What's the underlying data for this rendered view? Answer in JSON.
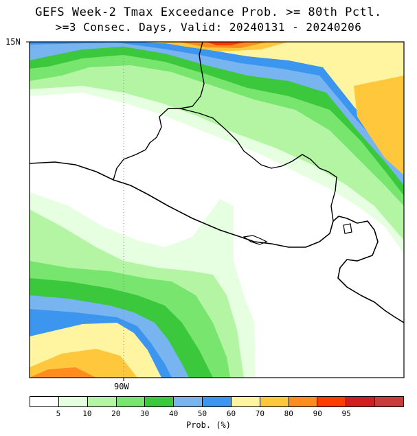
{
  "title_line1": "GEFS Week-2 Tmax Exceedance Prob. >= 80th Pctl.",
  "title_line2": ">=3 Consec. Days, Valid: 20240131 - 20240206",
  "lat_label": "15N",
  "lon_label": "90W",
  "legend": {
    "colors": [
      "#ffffff",
      "#e6ffe0",
      "#b4f5a4",
      "#78e66e",
      "#3cc83c",
      "#78b4f0",
      "#3c96f0",
      "#fff5a0",
      "#ffc83c",
      "#ff8c1e",
      "#ff3c00",
      "#d21e1e",
      "#c83c3c"
    ],
    "ticks": [
      "5",
      "10",
      "20",
      "30",
      "40",
      "50",
      "60",
      "70",
      "80",
      "90",
      "95"
    ],
    "unit": "Prob. (%)"
  }
}
